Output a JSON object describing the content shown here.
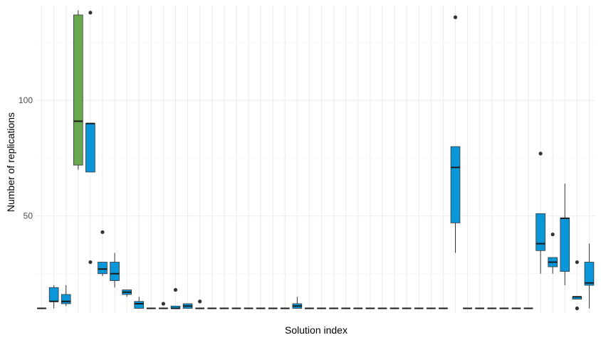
{
  "chart_data": {
    "type": "boxplot",
    "title": "",
    "xlabel": "Solution index",
    "ylabel": "Number of replications",
    "ylim": [
      8,
      141
    ],
    "y_ticks": [
      50,
      100
    ],
    "grid": true,
    "legend": "none",
    "colors": {
      "default": "#0a97d9",
      "highlight": "#6aa84f",
      "outline": "#333333",
      "median": "#1a1a1a",
      "grid": "#ebebeb"
    },
    "boxes": [
      {
        "index": 1,
        "min": 10,
        "q1": 10,
        "median": 10,
        "q3": 10,
        "max": 10,
        "outliers": []
      },
      {
        "index": 2,
        "min": 10,
        "q1": 13,
        "median": 13,
        "q3": 19,
        "max": 20,
        "outliers": []
      },
      {
        "index": 3,
        "min": 11,
        "q1": 12,
        "median": 13,
        "q3": 16,
        "max": 20,
        "outliers": []
      },
      {
        "index": 4,
        "min": 70,
        "q1": 72,
        "median": 91,
        "q3": 137,
        "max": 139,
        "outliers": [],
        "color": "highlight"
      },
      {
        "index": 5,
        "min": 69,
        "q1": 69,
        "median": 90,
        "q3": 90,
        "max": 90,
        "outliers": [
          138,
          30
        ]
      },
      {
        "index": 6,
        "min": 24,
        "q1": 25,
        "median": 27,
        "q3": 30,
        "max": 30,
        "outliers": [
          43
        ]
      },
      {
        "index": 7,
        "min": 19,
        "q1": 22,
        "median": 25,
        "q3": 30,
        "max": 34,
        "outliers": []
      },
      {
        "index": 8,
        "min": 15,
        "q1": 16,
        "median": 17,
        "q3": 18,
        "max": 18,
        "outliers": []
      },
      {
        "index": 9,
        "min": 10,
        "q1": 10,
        "median": 12,
        "q3": 13,
        "max": 15,
        "outliers": []
      },
      {
        "index": 10,
        "min": 10,
        "q1": 10,
        "median": 10,
        "q3": 10,
        "max": 10,
        "outliers": []
      },
      {
        "index": 11,
        "min": 10,
        "q1": 10,
        "median": 10,
        "q3": 10,
        "max": 10,
        "outliers": [
          12
        ]
      },
      {
        "index": 12,
        "min": 10,
        "q1": 10,
        "median": 10,
        "q3": 11,
        "max": 11,
        "outliers": [
          18
        ]
      },
      {
        "index": 13,
        "min": 10,
        "q1": 10,
        "median": 11,
        "q3": 12,
        "max": 12,
        "outliers": []
      },
      {
        "index": 14,
        "min": 10,
        "q1": 10,
        "median": 10,
        "q3": 10,
        "max": 10,
        "outliers": [
          13
        ]
      },
      {
        "index": 15,
        "min": 10,
        "q1": 10,
        "median": 10,
        "q3": 10,
        "max": 10,
        "outliers": []
      },
      {
        "index": 16,
        "min": 10,
        "q1": 10,
        "median": 10,
        "q3": 10,
        "max": 10,
        "outliers": []
      },
      {
        "index": 17,
        "min": 10,
        "q1": 10,
        "median": 10,
        "q3": 10,
        "max": 10,
        "outliers": []
      },
      {
        "index": 18,
        "min": 10,
        "q1": 10,
        "median": 10,
        "q3": 10,
        "max": 10,
        "outliers": []
      },
      {
        "index": 19,
        "min": 10,
        "q1": 10,
        "median": 10,
        "q3": 10,
        "max": 10,
        "outliers": []
      },
      {
        "index": 20,
        "min": 10,
        "q1": 10,
        "median": 10,
        "q3": 10,
        "max": 10,
        "outliers": []
      },
      {
        "index": 21,
        "min": 10,
        "q1": 10,
        "median": 10,
        "q3": 10,
        "max": 10,
        "outliers": []
      },
      {
        "index": 22,
        "min": 10,
        "q1": 10,
        "median": 11,
        "q3": 12,
        "max": 15,
        "outliers": []
      },
      {
        "index": 23,
        "min": 10,
        "q1": 10,
        "median": 10,
        "q3": 10,
        "max": 10,
        "outliers": []
      },
      {
        "index": 24,
        "min": 10,
        "q1": 10,
        "median": 10,
        "q3": 10,
        "max": 10,
        "outliers": []
      },
      {
        "index": 25,
        "min": 10,
        "q1": 10,
        "median": 10,
        "q3": 10,
        "max": 10,
        "outliers": []
      },
      {
        "index": 26,
        "min": 10,
        "q1": 10,
        "median": 10,
        "q3": 10,
        "max": 10,
        "outliers": []
      },
      {
        "index": 27,
        "min": 10,
        "q1": 10,
        "median": 10,
        "q3": 10,
        "max": 10,
        "outliers": []
      },
      {
        "index": 28,
        "min": 10,
        "q1": 10,
        "median": 10,
        "q3": 10,
        "max": 10,
        "outliers": []
      },
      {
        "index": 29,
        "min": 10,
        "q1": 10,
        "median": 10,
        "q3": 10,
        "max": 10,
        "outliers": []
      },
      {
        "index": 30,
        "min": 10,
        "q1": 10,
        "median": 10,
        "q3": 10,
        "max": 10,
        "outliers": []
      },
      {
        "index": 31,
        "min": 10,
        "q1": 10,
        "median": 10,
        "q3": 10,
        "max": 10,
        "outliers": []
      },
      {
        "index": 32,
        "min": 10,
        "q1": 10,
        "median": 10,
        "q3": 10,
        "max": 10,
        "outliers": []
      },
      {
        "index": 33,
        "min": 10,
        "q1": 10,
        "median": 10,
        "q3": 10,
        "max": 10,
        "outliers": []
      },
      {
        "index": 34,
        "min": 10,
        "q1": 10,
        "median": 10,
        "q3": 10,
        "max": 10,
        "outliers": []
      },
      {
        "index": 35,
        "min": 34,
        "q1": 47,
        "median": 71,
        "q3": 80,
        "max": 80,
        "outliers": [
          136
        ]
      },
      {
        "index": 36,
        "min": 10,
        "q1": 10,
        "median": 10,
        "q3": 10,
        "max": 10,
        "outliers": []
      },
      {
        "index": 37,
        "min": 10,
        "q1": 10,
        "median": 10,
        "q3": 10,
        "max": 10,
        "outliers": []
      },
      {
        "index": 38,
        "min": 10,
        "q1": 10,
        "median": 10,
        "q3": 10,
        "max": 10,
        "outliers": []
      },
      {
        "index": 39,
        "min": 10,
        "q1": 10,
        "median": 10,
        "q3": 10,
        "max": 10,
        "outliers": []
      },
      {
        "index": 40,
        "min": 10,
        "q1": 10,
        "median": 10,
        "q3": 10,
        "max": 10,
        "outliers": []
      },
      {
        "index": 41,
        "min": 10,
        "q1": 10,
        "median": 10,
        "q3": 10,
        "max": 10,
        "outliers": []
      },
      {
        "index": 42,
        "min": 25,
        "q1": 35,
        "median": 38,
        "q3": 51,
        "max": 51,
        "outliers": [
          77
        ]
      },
      {
        "index": 43,
        "min": 25,
        "q1": 28,
        "median": 30,
        "q3": 32,
        "max": 32,
        "outliers": [
          42
        ]
      },
      {
        "index": 44,
        "min": 20,
        "q1": 26,
        "median": 49,
        "q3": 49,
        "max": 64,
        "outliers": []
      },
      {
        "index": 45,
        "min": 14,
        "q1": 14,
        "median": 15,
        "q3": 15,
        "max": 15,
        "outliers": [
          30,
          10
        ]
      },
      {
        "index": 46,
        "min": 10,
        "q1": 20,
        "median": 21,
        "q3": 30,
        "max": 38,
        "outliers": []
      }
    ]
  }
}
